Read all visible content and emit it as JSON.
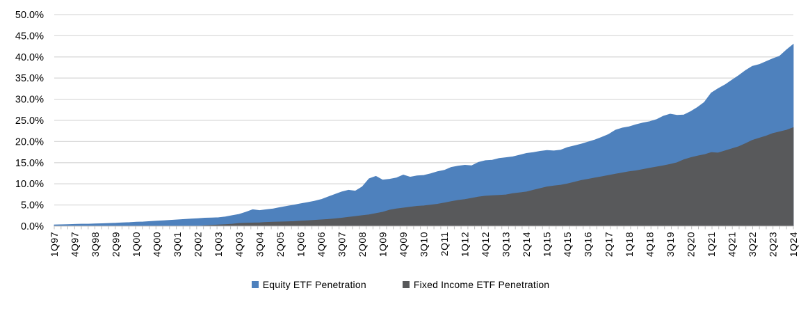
{
  "chart_data": {
    "type": "area",
    "overlap_mode": "overlapping",
    "title": "",
    "xlabel": "",
    "ylabel": "",
    "ylim": [
      0,
      50
    ],
    "y_tick_step": 5,
    "y_tick_labels": [
      "0.0%",
      "5.0%",
      "10.0%",
      "15.0%",
      "20.0%",
      "25.0%",
      "30.0%",
      "35.0%",
      "40.0%",
      "45.0%",
      "50.0%"
    ],
    "x_tick_every": 3,
    "grid": "horizontal",
    "legend_position": "bottom",
    "x": [
      "1Q97",
      "2Q97",
      "3Q97",
      "4Q97",
      "1Q98",
      "2Q98",
      "3Q98",
      "4Q98",
      "1Q99",
      "2Q99",
      "3Q99",
      "4Q99",
      "1Q00",
      "2Q00",
      "3Q00",
      "4Q00",
      "1Q01",
      "2Q01",
      "3Q01",
      "4Q01",
      "1Q02",
      "2Q02",
      "3Q02",
      "4Q02",
      "1Q03",
      "2Q03",
      "3Q03",
      "4Q03",
      "1Q04",
      "2Q04",
      "3Q04",
      "4Q04",
      "1Q05",
      "2Q05",
      "3Q05",
      "4Q05",
      "1Q06",
      "2Q06",
      "3Q06",
      "4Q06",
      "1Q07",
      "2Q07",
      "3Q07",
      "4Q07",
      "1Q08",
      "2Q08",
      "3Q08",
      "4Q08",
      "1Q09",
      "2Q09",
      "3Q09",
      "4Q09",
      "1Q10",
      "2Q10",
      "3Q10",
      "4Q10",
      "1Q11",
      "2Q11",
      "3Q11",
      "4Q11",
      "1Q12",
      "2Q12",
      "3Q12",
      "4Q12",
      "1Q13",
      "2Q13",
      "3Q13",
      "4Q13",
      "1Q14",
      "2Q14",
      "3Q14",
      "4Q14",
      "1Q15",
      "2Q15",
      "3Q15",
      "4Q15",
      "1Q16",
      "2Q16",
      "3Q16",
      "4Q16",
      "1Q17",
      "2Q17",
      "3Q17",
      "4Q17",
      "1Q18",
      "2Q18",
      "3Q18",
      "4Q18",
      "1Q19",
      "2Q19",
      "3Q19",
      "4Q19",
      "1Q20",
      "2Q20",
      "3Q20",
      "4Q20",
      "1Q21",
      "2Q21",
      "3Q21",
      "4Q21",
      "1Q22",
      "2Q22",
      "3Q22",
      "4Q22",
      "1Q23",
      "2Q23",
      "3Q23",
      "4Q23",
      "1Q24"
    ],
    "series": [
      {
        "name": "Equity ETF Penetration",
        "color": "#4E81BD",
        "values": [
          0.3,
          0.35,
          0.4,
          0.45,
          0.5,
          0.5,
          0.55,
          0.6,
          0.65,
          0.7,
          0.8,
          0.85,
          0.95,
          1.0,
          1.1,
          1.2,
          1.3,
          1.4,
          1.5,
          1.6,
          1.7,
          1.8,
          1.9,
          1.95,
          2.0,
          2.2,
          2.5,
          2.8,
          3.3,
          3.9,
          3.7,
          3.9,
          4.1,
          4.4,
          4.7,
          5.0,
          5.3,
          5.6,
          5.9,
          6.3,
          6.9,
          7.5,
          8.1,
          8.5,
          8.3,
          9.3,
          11.2,
          11.8,
          10.9,
          11.1,
          11.4,
          12.1,
          11.6,
          11.9,
          12.0,
          12.4,
          12.9,
          13.2,
          13.9,
          14.2,
          14.4,
          14.3,
          15.1,
          15.5,
          15.6,
          16.0,
          16.2,
          16.4,
          16.8,
          17.2,
          17.4,
          17.7,
          17.9,
          17.8,
          18.0,
          18.6,
          19.0,
          19.4,
          19.9,
          20.4,
          21.0,
          21.7,
          22.7,
          23.2,
          23.5,
          24.0,
          24.4,
          24.7,
          25.2,
          26.0,
          26.5,
          26.2,
          26.3,
          27.1,
          28.1,
          29.3,
          31.5,
          32.5,
          33.4,
          34.5,
          35.6,
          36.8,
          37.8,
          38.2,
          38.9,
          39.6,
          40.2,
          41.7,
          43.0
        ]
      },
      {
        "name": "Fixed Income ETF Penetration",
        "color": "#58595B",
        "values": [
          0,
          0,
          0,
          0,
          0,
          0,
          0,
          0,
          0,
          0,
          0,
          0,
          0,
          0,
          0,
          0,
          0,
          0,
          0,
          0,
          0,
          0,
          0.1,
          0.2,
          0.3,
          0.4,
          0.5,
          0.65,
          0.7,
          0.75,
          0.8,
          0.9,
          0.95,
          1.0,
          1.05,
          1.1,
          1.2,
          1.3,
          1.4,
          1.5,
          1.6,
          1.75,
          1.9,
          2.1,
          2.3,
          2.5,
          2.7,
          3.0,
          3.3,
          3.8,
          4.1,
          4.3,
          4.5,
          4.7,
          4.8,
          5.0,
          5.2,
          5.5,
          5.8,
          6.1,
          6.3,
          6.6,
          6.9,
          7.1,
          7.2,
          7.3,
          7.4,
          7.7,
          7.9,
          8.1,
          8.5,
          8.9,
          9.3,
          9.5,
          9.7,
          10.0,
          10.4,
          10.8,
          11.1,
          11.4,
          11.7,
          12.0,
          12.3,
          12.6,
          12.9,
          13.1,
          13.4,
          13.7,
          14.0,
          14.3,
          14.6,
          15.0,
          15.7,
          16.2,
          16.6,
          16.9,
          17.4,
          17.3,
          17.8,
          18.3,
          18.8,
          19.5,
          20.3,
          20.8,
          21.3,
          21.9,
          22.3,
          22.7,
          23.3
        ]
      }
    ],
    "colors": {
      "gridline": "#D9D9D9",
      "axis": "#BFBFBF",
      "text": "#000000",
      "background": "#FFFFFF"
    }
  },
  "legend": {
    "items": [
      {
        "label": "Equity ETF Penetration",
        "color": "#4E81BD"
      },
      {
        "label": "Fixed Income ETF Penetration",
        "color": "#58595B"
      }
    ]
  }
}
